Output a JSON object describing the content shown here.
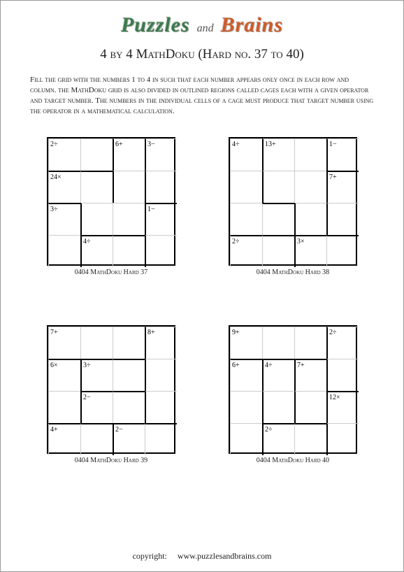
{
  "logo": {
    "left": "Puzzles",
    "mid": "and",
    "right": "Brains"
  },
  "title": "4 by 4 MathDoku (Hard no. 37 to 40)",
  "instructions": "Fill the grid with the numbers 1 to 4 in such that each number appears only once in each row and column. the MathDoku grid is also divided in  outlined regions called cages each with a given operator and target number. The numbers in the individual cells of a cage must produce that target number using the operator in a mathematical calculation.",
  "colors": {
    "puzzles": "#3a7a4a",
    "brains": "#d05a28",
    "border": "#000000",
    "thin": "#cccccc",
    "bg": "#ffffff",
    "text": "#222222"
  },
  "cell_size": 46,
  "puzzles": [
    {
      "caption": "0404 MathDoku Hard 37",
      "cells": [
        {
          "r": 0,
          "c": 0,
          "clue": "2÷",
          "top": false,
          "left": false
        },
        {
          "r": 0,
          "c": 1,
          "clue": "",
          "top": false,
          "left": false
        },
        {
          "r": 0,
          "c": 2,
          "clue": "6+",
          "top": false,
          "left": true
        },
        {
          "r": 0,
          "c": 3,
          "clue": "3−",
          "top": false,
          "left": true
        },
        {
          "r": 1,
          "c": 0,
          "clue": "24×",
          "top": true,
          "left": false
        },
        {
          "r": 1,
          "c": 1,
          "clue": "",
          "top": true,
          "left": false
        },
        {
          "r": 1,
          "c": 2,
          "clue": "",
          "top": false,
          "left": true
        },
        {
          "r": 1,
          "c": 3,
          "clue": "",
          "top": false,
          "left": true
        },
        {
          "r": 2,
          "c": 0,
          "clue": "3÷",
          "top": true,
          "left": false
        },
        {
          "r": 2,
          "c": 1,
          "clue": "",
          "top": false,
          "left": true
        },
        {
          "r": 2,
          "c": 2,
          "clue": "",
          "top": false,
          "left": false
        },
        {
          "r": 2,
          "c": 3,
          "clue": "1−",
          "top": true,
          "left": true
        },
        {
          "r": 3,
          "c": 0,
          "clue": "",
          "top": false,
          "left": false
        },
        {
          "r": 3,
          "c": 1,
          "clue": "4÷",
          "top": true,
          "left": true
        },
        {
          "r": 3,
          "c": 2,
          "clue": "",
          "top": true,
          "left": false
        },
        {
          "r": 3,
          "c": 3,
          "clue": "",
          "top": false,
          "left": true
        }
      ]
    },
    {
      "caption": "0404 MathDoku Hard 38",
      "cells": [
        {
          "r": 0,
          "c": 0,
          "clue": "4÷",
          "top": false,
          "left": false
        },
        {
          "r": 0,
          "c": 1,
          "clue": "13+",
          "top": false,
          "left": true
        },
        {
          "r": 0,
          "c": 2,
          "clue": "",
          "top": false,
          "left": false
        },
        {
          "r": 0,
          "c": 3,
          "clue": "1−",
          "top": false,
          "left": true
        },
        {
          "r": 1,
          "c": 0,
          "clue": "",
          "top": false,
          "left": false
        },
        {
          "r": 1,
          "c": 1,
          "clue": "",
          "top": false,
          "left": true
        },
        {
          "r": 1,
          "c": 2,
          "clue": "",
          "top": false,
          "left": false
        },
        {
          "r": 1,
          "c": 3,
          "clue": "7+",
          "top": true,
          "left": true
        },
        {
          "r": 2,
          "c": 0,
          "clue": "",
          "top": false,
          "left": false
        },
        {
          "r": 2,
          "c": 1,
          "clue": "",
          "top": true,
          "left": false
        },
        {
          "r": 2,
          "c": 2,
          "clue": "",
          "top": false,
          "left": true
        },
        {
          "r": 2,
          "c": 3,
          "clue": "",
          "top": false,
          "left": true
        },
        {
          "r": 3,
          "c": 0,
          "clue": "2÷",
          "top": true,
          "left": false
        },
        {
          "r": 3,
          "c": 1,
          "clue": "",
          "top": true,
          "left": false
        },
        {
          "r": 3,
          "c": 2,
          "clue": "3×",
          "top": true,
          "left": true
        },
        {
          "r": 3,
          "c": 3,
          "clue": "",
          "top": true,
          "left": false
        }
      ]
    },
    {
      "caption": "0404 MathDoku Hard 39",
      "cells": [
        {
          "r": 0,
          "c": 0,
          "clue": "7+",
          "top": false,
          "left": false
        },
        {
          "r": 0,
          "c": 1,
          "clue": "",
          "top": false,
          "left": false
        },
        {
          "r": 0,
          "c": 2,
          "clue": "",
          "top": false,
          "left": false
        },
        {
          "r": 0,
          "c": 3,
          "clue": "8+",
          "top": false,
          "left": true
        },
        {
          "r": 1,
          "c": 0,
          "clue": "6×",
          "top": true,
          "left": false
        },
        {
          "r": 1,
          "c": 1,
          "clue": "3÷",
          "top": true,
          "left": true
        },
        {
          "r": 1,
          "c": 2,
          "clue": "",
          "top": true,
          "left": false
        },
        {
          "r": 1,
          "c": 3,
          "clue": "",
          "top": false,
          "left": true
        },
        {
          "r": 2,
          "c": 0,
          "clue": "",
          "top": false,
          "left": false
        },
        {
          "r": 2,
          "c": 1,
          "clue": "2−",
          "top": true,
          "left": true
        },
        {
          "r": 2,
          "c": 2,
          "clue": "",
          "top": true,
          "left": false
        },
        {
          "r": 2,
          "c": 3,
          "clue": "",
          "top": false,
          "left": true
        },
        {
          "r": 3,
          "c": 0,
          "clue": "4+",
          "top": true,
          "left": false
        },
        {
          "r": 3,
          "c": 1,
          "clue": "",
          "top": true,
          "left": false
        },
        {
          "r": 3,
          "c": 2,
          "clue": "2−",
          "top": true,
          "left": true
        },
        {
          "r": 3,
          "c": 3,
          "clue": "",
          "top": true,
          "left": false
        }
      ]
    },
    {
      "caption": "0404 MathDoku Hard 40",
      "cells": [
        {
          "r": 0,
          "c": 0,
          "clue": "9+",
          "top": false,
          "left": false
        },
        {
          "r": 0,
          "c": 1,
          "clue": "",
          "top": false,
          "left": false
        },
        {
          "r": 0,
          "c": 2,
          "clue": "",
          "top": false,
          "left": false
        },
        {
          "r": 0,
          "c": 3,
          "clue": "2÷",
          "top": false,
          "left": true
        },
        {
          "r": 1,
          "c": 0,
          "clue": "6+",
          "top": true,
          "left": false
        },
        {
          "r": 1,
          "c": 1,
          "clue": "4÷",
          "top": true,
          "left": true
        },
        {
          "r": 1,
          "c": 2,
          "clue": "7+",
          "top": true,
          "left": true
        },
        {
          "r": 1,
          "c": 3,
          "clue": "",
          "top": false,
          "left": true
        },
        {
          "r": 2,
          "c": 0,
          "clue": "",
          "top": false,
          "left": false
        },
        {
          "r": 2,
          "c": 1,
          "clue": "",
          "top": false,
          "left": true
        },
        {
          "r": 2,
          "c": 2,
          "clue": "",
          "top": false,
          "left": true
        },
        {
          "r": 2,
          "c": 3,
          "clue": "12×",
          "top": true,
          "left": true
        },
        {
          "r": 3,
          "c": 0,
          "clue": "",
          "top": false,
          "left": false
        },
        {
          "r": 3,
          "c": 1,
          "clue": "2÷",
          "top": true,
          "left": true
        },
        {
          "r": 3,
          "c": 2,
          "clue": "",
          "top": true,
          "left": false
        },
        {
          "r": 3,
          "c": 3,
          "clue": "",
          "top": false,
          "left": true
        }
      ]
    }
  ],
  "copyright": {
    "label": "copyright:",
    "url": "www.puzzlesandbrains.com"
  }
}
